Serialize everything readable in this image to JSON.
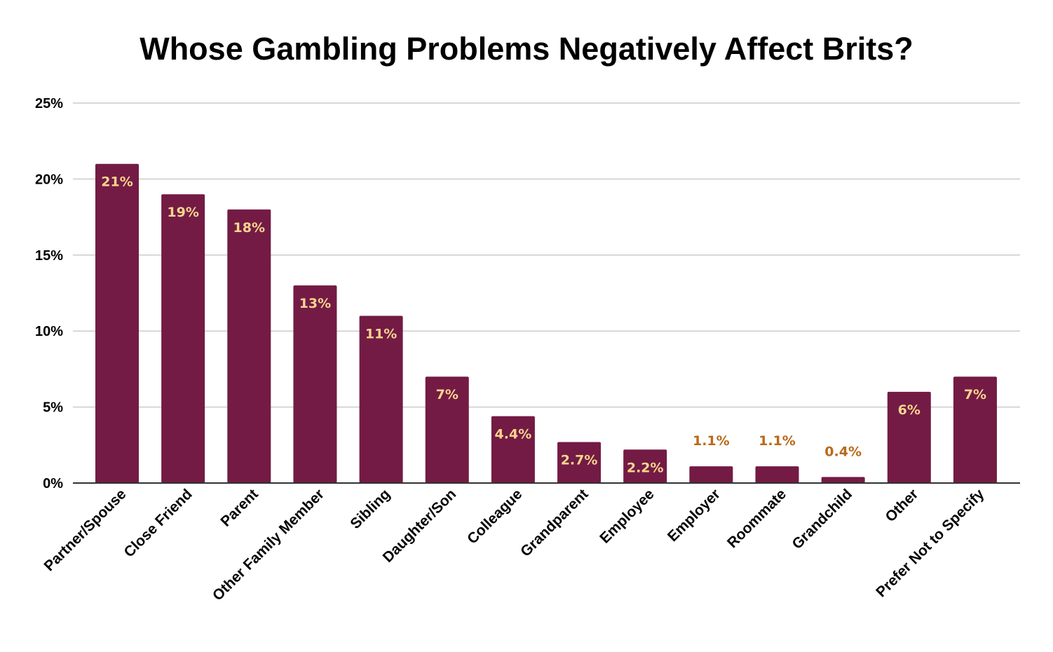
{
  "chart_data": {
    "type": "bar",
    "title": "Whose Gambling Problems Negatively Affect Brits?",
    "xlabel": "",
    "ylabel": "",
    "ylim": [
      0,
      25
    ],
    "yticks": [
      "0%",
      "5%",
      "10%",
      "15%",
      "20%",
      "25%"
    ],
    "grid": true,
    "categories": [
      "Partner/Spouse",
      "Close Friend",
      "Parent",
      "Other Family Member",
      "Sibling",
      "Daughter/Son",
      "Colleague",
      "Grandparent",
      "Employee",
      "Employer",
      "Roommate",
      "Grandchild",
      "Other",
      "Prefer Not to Specify"
    ],
    "values": [
      21,
      19,
      18,
      13,
      11,
      7,
      4.4,
      2.7,
      2.2,
      1.1,
      1.1,
      0.4,
      6,
      7
    ],
    "data_labels": [
      "21%",
      "19%",
      "18%",
      "13%",
      "11%",
      "7%",
      "4.4%",
      "2.7%",
      "2.2%",
      "1.1%",
      "1.1%",
      "0.4%",
      "6%",
      "7%"
    ],
    "colors": {
      "bar": "#731b44",
      "label_inside": "#f6d58f",
      "label_outside": "#b8691a",
      "grid": "#cccccc",
      "axis": "#333333"
    }
  }
}
